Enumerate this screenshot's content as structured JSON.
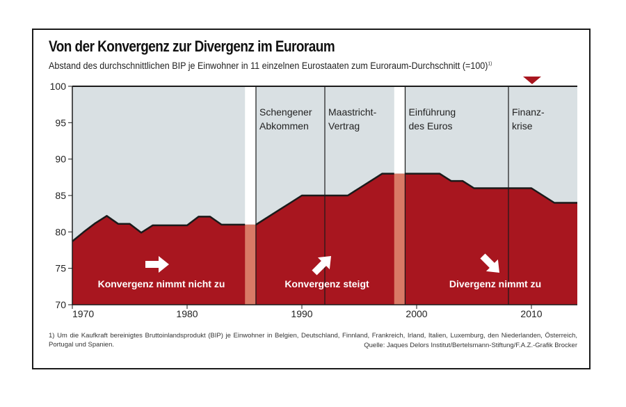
{
  "title": "Von der Konvergenz zur Divergenz im Euroraum",
  "subtitle": "Abstand des durchschnittlichen BIP je Einwohner in 11 einzelnen Eurostaaten zum Euroraum-Durchschnitt (=100)",
  "subtitle_footnote_mark": "1)",
  "footnote": "1) Um die Kaufkraft bereinigtes Bruttoinlandsprodukt (BIP) je Einwohner in Belgien, Deutschland, Finnland, Frankreich, Irland, Italien, Luxemburg, den Niederlanden, Österreich, Portugal und Spanien.",
  "source": "Quelle: Jaques Delors Institut/Bertelsmann-Stiftung/F.A.Z.-Grafik Brocker",
  "colors": {
    "area": "#a8161f",
    "background": "#d9e0e3",
    "separator": "#d97a66",
    "marker": "#a8161f"
  },
  "chart_data": {
    "type": "area",
    "x": [
      1970,
      1971,
      1972,
      1973,
      1974,
      1975,
      1976,
      1977,
      1978,
      1979,
      1980,
      1981,
      1982,
      1983,
      1984,
      1985,
      1986,
      1987,
      1988,
      1989,
      1990,
      1991,
      1992,
      1993,
      1994,
      1995,
      1996,
      1997,
      1998,
      1999,
      2000,
      2001,
      2002,
      2003,
      2004,
      2005,
      2006,
      2007,
      2008,
      2009,
      2010,
      2011,
      2012,
      2013,
      2014
    ],
    "values": [
      78.7,
      80,
      81.2,
      82.2,
      81.1,
      81.1,
      79.9,
      80.9,
      80.9,
      80.9,
      80.9,
      82.1,
      82.1,
      81.0,
      81.0,
      81.0,
      81.0,
      82.0,
      83.0,
      84.0,
      85.0,
      85.0,
      85.0,
      85.0,
      85.0,
      86.0,
      87.0,
      88.0,
      88.0,
      88.0,
      88.0,
      88.0,
      88.0,
      87.0,
      87.0,
      86.0,
      86.0,
      86.0,
      86.0,
      86.0,
      86.0,
      85.0,
      84.0,
      84.0,
      84.0
    ],
    "ylim": [
      70,
      100
    ],
    "xlim": [
      1970,
      2014
    ],
    "y_ticks": [
      70,
      75,
      80,
      85,
      90,
      95,
      100
    ],
    "x_ticks": [
      1970,
      1980,
      1990,
      2000,
      2010
    ],
    "x_tick_labels": [
      "1970",
      "1980",
      "1990",
      "2000",
      "2010"
    ],
    "y_tick_labels": [
      "70",
      "75",
      "80",
      "85",
      "90",
      "95",
      "100"
    ],
    "reference_value": 100,
    "phase_separators": [
      1985.5,
      1998.5
    ],
    "events": [
      {
        "year": 1986,
        "lines": [
          "Schengener",
          "Abkommen"
        ]
      },
      {
        "year": 1992,
        "lines": [
          "Maastricht-",
          "Vertrag"
        ]
      },
      {
        "year": 1999,
        "lines": [
          "Einführung",
          "des Euros"
        ]
      },
      {
        "year": 2008,
        "lines": [
          "Finanz-",
          "krise"
        ]
      }
    ],
    "phases": [
      {
        "label": "Konvergenz nimmt nicht zu",
        "arrow": "right"
      },
      {
        "label": "Konvergenz steigt",
        "arrow": "up-right"
      },
      {
        "label": "Divergenz nimmt zu",
        "arrow": "down-right"
      }
    ]
  }
}
